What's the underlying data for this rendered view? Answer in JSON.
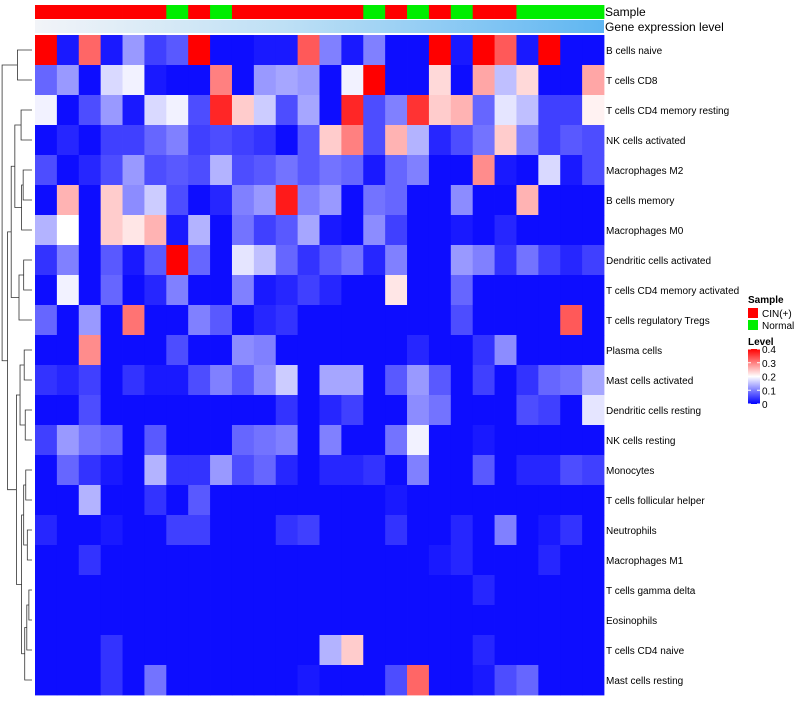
{
  "chart_data": {
    "type": "heatmap",
    "title": "",
    "annotation_titles": {
      "sample": "Sample",
      "expression": "Gene expression level"
    },
    "legend_sample": {
      "title": "Sample",
      "entries": [
        {
          "label": "CIN(+)",
          "color": "#ff0000"
        },
        {
          "label": "Normal",
          "color": "#00ee00"
        }
      ]
    },
    "legend_level": {
      "title": "Level",
      "ticks": [
        "0.4",
        "0.3",
        "0.2",
        "0.1",
        "0"
      ]
    },
    "color_scale": {
      "min": 0,
      "mid": 0.2,
      "max": 0.4,
      "low": "#0000ff",
      "midColor": "#ffffff",
      "high": "#ff0000"
    },
    "sample_groups": [
      "CIN",
      "CIN",
      "CIN",
      "CIN",
      "CIN",
      "CIN",
      "N",
      "CIN",
      "N",
      "CIN",
      "CIN",
      "CIN",
      "CIN",
      "CIN",
      "CIN",
      "N",
      "CIN",
      "N",
      "CIN",
      "N",
      "CIN",
      "CIN",
      "N",
      "N",
      "N",
      "N"
    ],
    "rows": [
      "B cells naive",
      "T cells CD8",
      "T cells CD4 memory resting",
      "NK cells activated",
      "Macrophages M2",
      "B cells memory",
      "Macrophages M0",
      "Dendritic cells activated",
      "T cells CD4 memory activated",
      "T cells regulatory  Tregs",
      "Plasma cells",
      "Mast cells activated",
      "Dendritic cells resting",
      "NK cells resting",
      "Monocytes",
      "T cells follicular helper",
      "Neutrophils",
      "Macrophages M1",
      "T cells gamma delta",
      "Eosinophils",
      "T cells CD4 naive",
      "Mast cells resting"
    ],
    "values": [
      [
        0.4,
        0.02,
        0.32,
        0.02,
        0.12,
        0.05,
        0.07,
        0.4,
        0.01,
        0.01,
        0.02,
        0.02,
        0.33,
        0.1,
        0.02,
        0.1,
        0.01,
        0.01,
        0.4,
        0.02,
        0.4,
        0.33,
        0.02,
        0.4,
        0.01,
        0.01
      ],
      [
        0.08,
        0.12,
        0.01,
        0.17,
        0.19,
        0.02,
        0.01,
        0.01,
        0.3,
        0.01,
        0.12,
        0.13,
        0.12,
        0.01,
        0.19,
        0.4,
        0.01,
        0.01,
        0.23,
        0.01,
        0.27,
        0.15,
        0.23,
        0.01,
        0.01,
        0.27
      ],
      [
        0.19,
        0.01,
        0.06,
        0.12,
        0.02,
        0.17,
        0.19,
        0.06,
        0.37,
        0.24,
        0.16,
        0.06,
        0.13,
        0.01,
        0.37,
        0.06,
        0.1,
        0.36,
        0.24,
        0.26,
        0.08,
        0.18,
        0.15,
        0.05,
        0.05,
        0.21
      ],
      [
        0.01,
        0.03,
        0.01,
        0.05,
        0.05,
        0.08,
        0.1,
        0.05,
        0.06,
        0.05,
        0.04,
        0.01,
        0.07,
        0.24,
        0.3,
        0.06,
        0.26,
        0.14,
        0.03,
        0.06,
        0.09,
        0.24,
        0.1,
        0.05,
        0.07,
        0.06
      ],
      [
        0.06,
        0.01,
        0.03,
        0.06,
        0.12,
        0.06,
        0.07,
        0.06,
        0.14,
        0.06,
        0.07,
        0.09,
        0.07,
        0.09,
        0.08,
        0.02,
        0.08,
        0.1,
        0.01,
        0.01,
        0.29,
        0.02,
        0.01,
        0.17,
        0.02,
        0.06
      ],
      [
        0.01,
        0.26,
        0.01,
        0.24,
        0.11,
        0.16,
        0.06,
        0.01,
        0.03,
        0.1,
        0.12,
        0.38,
        0.1,
        0.12,
        0.01,
        0.09,
        0.08,
        0.01,
        0.01,
        0.11,
        0.01,
        0.01,
        0.26,
        0.01,
        0.01,
        0.01
      ],
      [
        0.14,
        0.2,
        0.01,
        0.24,
        0.22,
        0.26,
        0.02,
        0.14,
        0.01,
        0.09,
        0.05,
        0.07,
        0.13,
        0.02,
        0.01,
        0.11,
        0.05,
        0.01,
        0.01,
        0.02,
        0.01,
        0.03,
        0.01,
        0.01,
        0.01,
        0.01
      ],
      [
        0.04,
        0.1,
        0.01,
        0.07,
        0.02,
        0.07,
        0.4,
        0.08,
        0.01,
        0.18,
        0.15,
        0.08,
        0.04,
        0.07,
        0.09,
        0.03,
        0.1,
        0.01,
        0.01,
        0.12,
        0.1,
        0.04,
        0.09,
        0.05,
        0.03,
        0.05
      ],
      [
        0.01,
        0.19,
        0.01,
        0.08,
        0.01,
        0.03,
        0.1,
        0.01,
        0.01,
        0.1,
        0.02,
        0.03,
        0.05,
        0.03,
        0.01,
        0.01,
        0.22,
        0.01,
        0.01,
        0.08,
        0.01,
        0.01,
        0.01,
        0.01,
        0.01,
        0.01
      ],
      [
        0.08,
        0.01,
        0.12,
        0.01,
        0.31,
        0.01,
        0.01,
        0.1,
        0.07,
        0.01,
        0.03,
        0.04,
        0.01,
        0.01,
        0.01,
        0.01,
        0.01,
        0.01,
        0.01,
        0.06,
        0.01,
        0.01,
        0.01,
        0.01,
        0.33,
        0.01
      ],
      [
        0.01,
        0.01,
        0.29,
        0.01,
        0.01,
        0.01,
        0.06,
        0.01,
        0.01,
        0.11,
        0.1,
        0.01,
        0.01,
        0.01,
        0.01,
        0.01,
        0.01,
        0.03,
        0.01,
        0.01,
        0.04,
        0.11,
        0.01,
        0.01,
        0.01,
        0.01
      ],
      [
        0.04,
        0.03,
        0.05,
        0.01,
        0.04,
        0.02,
        0.02,
        0.06,
        0.1,
        0.07,
        0.11,
        0.16,
        0.01,
        0.13,
        0.13,
        0.01,
        0.07,
        0.12,
        0.07,
        0.01,
        0.05,
        0.01,
        0.04,
        0.08,
        0.09,
        0.13
      ],
      [
        0.01,
        0.01,
        0.06,
        0.01,
        0.01,
        0.01,
        0.01,
        0.01,
        0.01,
        0.01,
        0.01,
        0.04,
        0.01,
        0.03,
        0.05,
        0.01,
        0.01,
        0.11,
        0.09,
        0.01,
        0.01,
        0.01,
        0.06,
        0.05,
        0.01,
        0.18
      ],
      [
        0.05,
        0.12,
        0.09,
        0.08,
        0.01,
        0.07,
        0.01,
        0.01,
        0.01,
        0.08,
        0.09,
        0.1,
        0.01,
        0.1,
        0.01,
        0.01,
        0.09,
        0.19,
        0.01,
        0.01,
        0.02,
        0.01,
        0.01,
        0.01,
        0.01,
        0.01
      ],
      [
        0.01,
        0.08,
        0.04,
        0.02,
        0.01,
        0.14,
        0.04,
        0.04,
        0.12,
        0.06,
        0.08,
        0.03,
        0.01,
        0.03,
        0.03,
        0.04,
        0.01,
        0.1,
        0.01,
        0.01,
        0.07,
        0.01,
        0.03,
        0.03,
        0.06,
        0.05
      ],
      [
        0.01,
        0.01,
        0.14,
        0.01,
        0.01,
        0.04,
        0.01,
        0.07,
        0.01,
        0.01,
        0.01,
        0.01,
        0.01,
        0.01,
        0.01,
        0.01,
        0.02,
        0.01,
        0.01,
        0.01,
        0.01,
        0.01,
        0.01,
        0.01,
        0.01,
        0.01
      ],
      [
        0.03,
        0.01,
        0.01,
        0.02,
        0.01,
        0.01,
        0.05,
        0.05,
        0.01,
        0.01,
        0.01,
        0.04,
        0.05,
        0.01,
        0.01,
        0.01,
        0.04,
        0.01,
        0.01,
        0.03,
        0.01,
        0.1,
        0.01,
        0.02,
        0.04,
        0.01
      ],
      [
        0.01,
        0.01,
        0.04,
        0.01,
        0.01,
        0.01,
        0.01,
        0.01,
        0.01,
        0.01,
        0.01,
        0.01,
        0.01,
        0.01,
        0.01,
        0.01,
        0.01,
        0.01,
        0.02,
        0.03,
        0.01,
        0.01,
        0.01,
        0.03,
        0.01,
        0.01
      ],
      [
        0.01,
        0.01,
        0.01,
        0.01,
        0.01,
        0.01,
        0.01,
        0.01,
        0.01,
        0.01,
        0.01,
        0.01,
        0.01,
        0.01,
        0.01,
        0.01,
        0.01,
        0.01,
        0.01,
        0.01,
        0.03,
        0.01,
        0.01,
        0.01,
        0.01,
        0.01
      ],
      [
        0.01,
        0.01,
        0.01,
        0.01,
        0.01,
        0.01,
        0.01,
        0.01,
        0.01,
        0.01,
        0.01,
        0.01,
        0.01,
        0.01,
        0.01,
        0.01,
        0.01,
        0.01,
        0.01,
        0.01,
        0.01,
        0.01,
        0.01,
        0.01,
        0.01,
        0.01
      ],
      [
        0.01,
        0.01,
        0.01,
        0.04,
        0.01,
        0.01,
        0.01,
        0.01,
        0.01,
        0.01,
        0.01,
        0.01,
        0.01,
        0.14,
        0.24,
        0.01,
        0.01,
        0.01,
        0.01,
        0.01,
        0.03,
        0.01,
        0.01,
        0.01,
        0.01,
        0.01
      ],
      [
        0.01,
        0.01,
        0.01,
        0.04,
        0.01,
        0.09,
        0.01,
        0.01,
        0.01,
        0.01,
        0.01,
        0.01,
        0.02,
        0.01,
        0.01,
        0.01,
        0.06,
        0.32,
        0.01,
        0.01,
        0.02,
        0.06,
        0.08,
        0.01,
        0.01,
        0.01
      ]
    ]
  }
}
